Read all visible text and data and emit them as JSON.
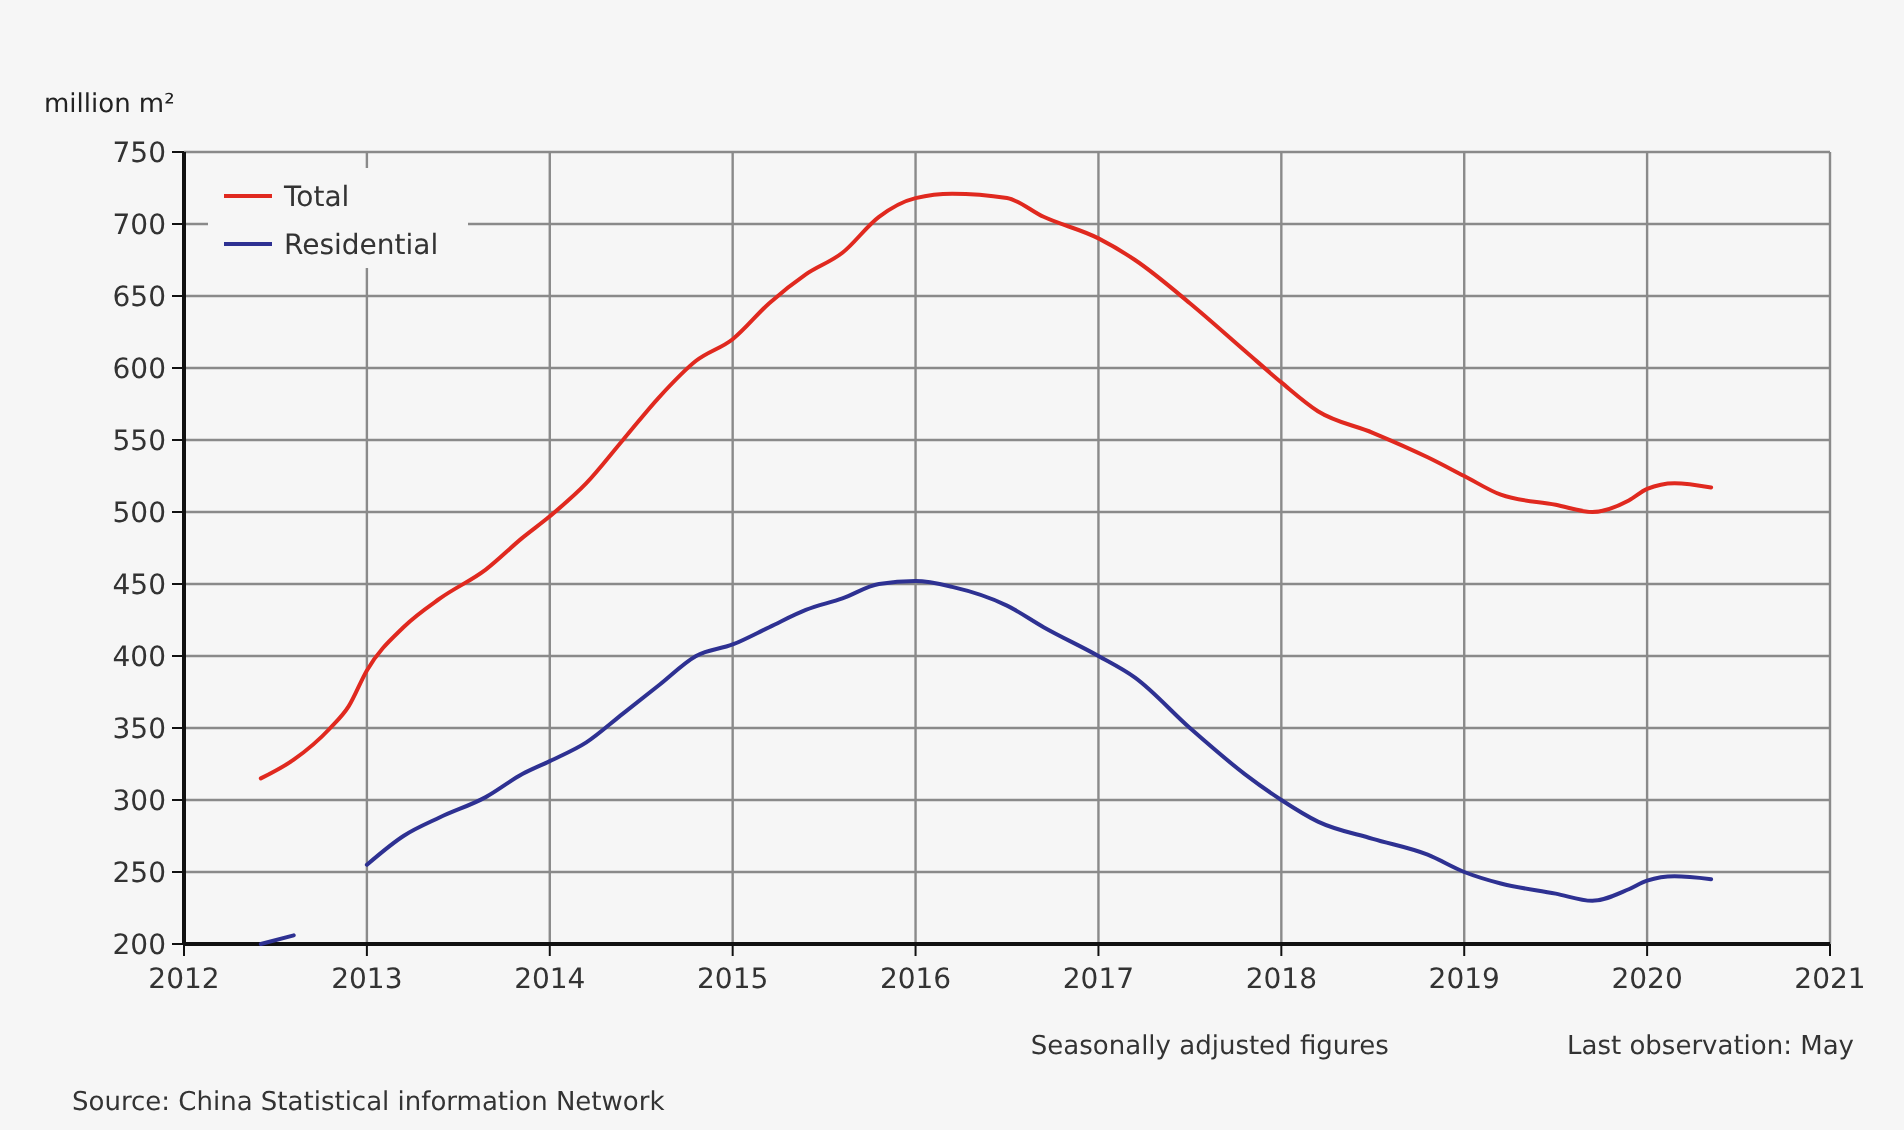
{
  "chart_data": {
    "type": "line",
    "ylabel": "million m²",
    "x": [
      2012.42,
      2012.6,
      2012.8,
      2012.9,
      2013.0,
      2013.2,
      2013.4,
      2013.65,
      2013.85,
      2014.0,
      2014.2,
      2014.4,
      2014.6,
      2014.8,
      2015.0,
      2015.2,
      2015.4,
      2015.6,
      2015.8,
      2016.0,
      2016.2,
      2016.5,
      2016.7,
      2017.0,
      2017.2,
      2017.5,
      2017.8,
      2018.0,
      2018.2,
      2018.5,
      2018.8,
      2019.0,
      2019.2,
      2019.5,
      2019.7,
      2019.9,
      2020.0,
      2020.15,
      2020.35
    ],
    "series": [
      {
        "name": "Total",
        "color": "#e0291f",
        "values": [
          315,
          328,
          350,
          365,
          390,
          420,
          440,
          460,
          482,
          497,
          520,
          550,
          580,
          605,
          620,
          645,
          665,
          680,
          705,
          718,
          721,
          718,
          705,
          690,
          675,
          645,
          612,
          590,
          570,
          555,
          538,
          525,
          512,
          505,
          500,
          508,
          516,
          520,
          517
        ]
      },
      {
        "name": "Residential",
        "color": "#2e3192",
        "values": [
          200,
          206,
          null,
          null,
          255,
          275,
          288,
          302,
          318,
          327,
          340,
          360,
          380,
          400,
          408,
          420,
          432,
          440,
          450,
          452,
          448,
          435,
          420,
          400,
          385,
          350,
          318,
          300,
          285,
          273,
          262,
          250,
          242,
          235,
          230,
          238,
          244,
          247,
          245
        ]
      }
    ],
    "xlim": [
      2012,
      2021
    ],
    "xticks": [
      2012,
      2013,
      2014,
      2015,
      2016,
      2017,
      2018,
      2019,
      2020,
      2021
    ],
    "ylim": [
      200,
      750
    ],
    "yticks": [
      200,
      250,
      300,
      350,
      400,
      450,
      500,
      550,
      600,
      650,
      700,
      750
    ],
    "grid": true,
    "legend": "top left",
    "annotations": [
      "Seasonally adjusted figures",
      "Last observation: May",
      "Source: China Statistical information Network"
    ]
  }
}
